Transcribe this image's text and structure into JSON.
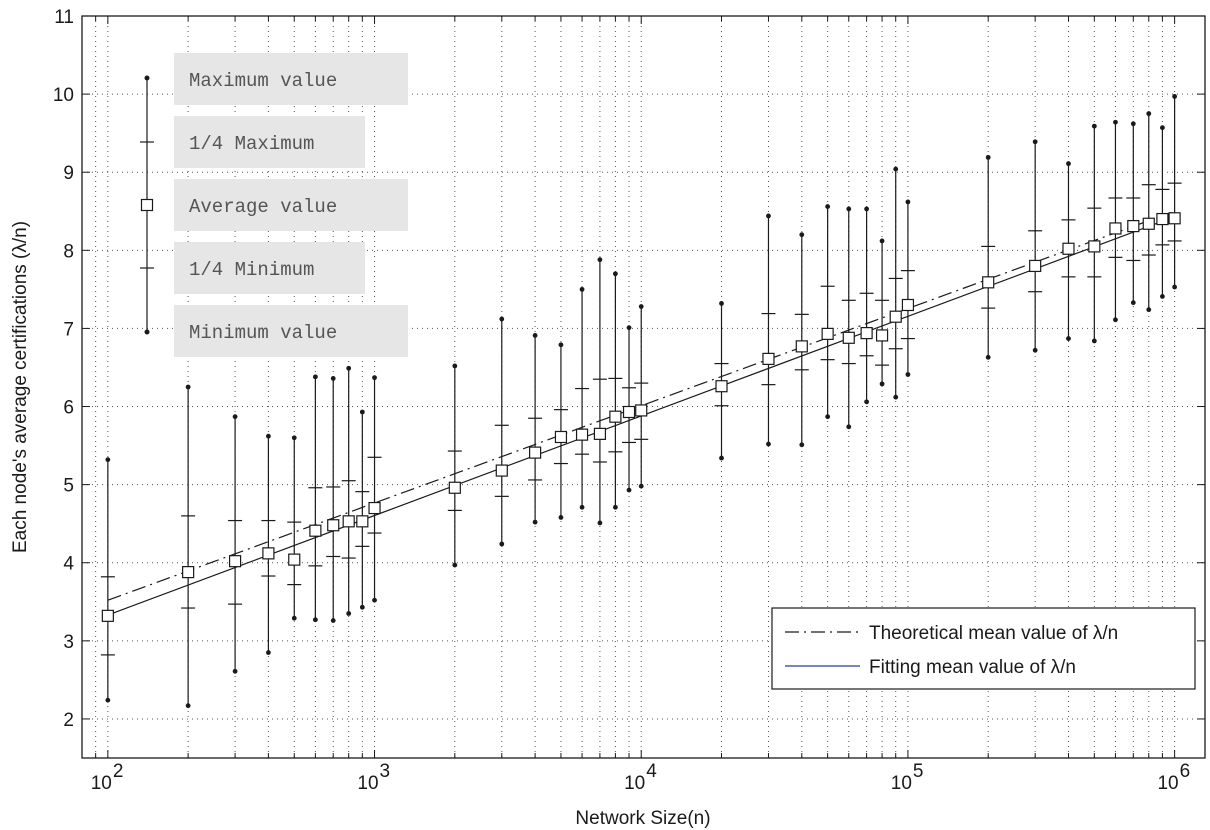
{
  "chart_data": {
    "type": "scatter",
    "title": "",
    "xlabel": "Network Size(n)",
    "ylabel": "Each node's average certifications (λ/n)",
    "x_scale": "log",
    "xlim": [
      80,
      1300000
    ],
    "ylim": [
      1.5,
      11
    ],
    "grid": true,
    "x_ticks": [
      {
        "value": 100,
        "base": "10",
        "exp": "2"
      },
      {
        "value": 1000,
        "base": "10",
        "exp": "3"
      },
      {
        "value": 10000,
        "base": "10",
        "exp": "4"
      },
      {
        "value": 100000,
        "base": "10",
        "exp": "5"
      },
      {
        "value": 1000000,
        "base": "10",
        "exp": "6"
      }
    ],
    "y_ticks": [
      "2",
      "3",
      "4",
      "5",
      "6",
      "7",
      "8",
      "9",
      "10",
      "11"
    ],
    "series": [
      {
        "name": "Average value",
        "points": [
          {
            "n": 100,
            "max": 5.32,
            "q3": 3.82,
            "avg": 3.32,
            "q1": 2.82,
            "min": 2.24
          },
          {
            "n": 200,
            "max": 6.25,
            "q3": 4.6,
            "avg": 3.88,
            "q1": 3.42,
            "min": 2.17
          },
          {
            "n": 300,
            "max": 5.87,
            "q3": 4.54,
            "avg": 4.02,
            "q1": 3.47,
            "min": 2.61
          },
          {
            "n": 400,
            "max": 5.62,
            "q3": 4.54,
            "avg": 4.12,
            "q1": 3.83,
            "min": 2.85
          },
          {
            "n": 500,
            "max": 5.6,
            "q3": 4.52,
            "avg": 4.04,
            "q1": 3.72,
            "min": 3.29
          },
          {
            "n": 600,
            "max": 6.38,
            "q3": 4.96,
            "avg": 4.41,
            "q1": 3.96,
            "min": 3.27
          },
          {
            "n": 700,
            "max": 6.36,
            "q3": 4.97,
            "avg": 4.48,
            "q1": 4.08,
            "min": 3.26
          },
          {
            "n": 800,
            "max": 6.49,
            "q3": 5.05,
            "avg": 4.53,
            "q1": 4.06,
            "min": 3.35
          },
          {
            "n": 900,
            "max": 5.93,
            "q3": 4.91,
            "avg": 4.53,
            "q1": 4.21,
            "min": 3.43
          },
          {
            "n": 1000,
            "max": 6.37,
            "q3": 5.35,
            "avg": 4.7,
            "q1": 4.38,
            "min": 3.52
          },
          {
            "n": 2000,
            "max": 6.52,
            "q3": 5.43,
            "avg": 4.96,
            "q1": 4.67,
            "min": 3.97
          },
          {
            "n": 3000,
            "max": 7.12,
            "q3": 5.76,
            "avg": 5.18,
            "q1": 4.85,
            "min": 4.24
          },
          {
            "n": 4000,
            "max": 6.91,
            "q3": 5.85,
            "avg": 5.41,
            "q1": 5.06,
            "min": 4.52
          },
          {
            "n": 5000,
            "max": 6.79,
            "q3": 5.96,
            "avg": 5.61,
            "q1": 5.27,
            "min": 4.58
          },
          {
            "n": 6000,
            "max": 7.5,
            "q3": 6.23,
            "avg": 5.64,
            "q1": 5.39,
            "min": 4.71
          },
          {
            "n": 7000,
            "max": 7.88,
            "q3": 6.35,
            "avg": 5.65,
            "q1": 5.29,
            "min": 4.51
          },
          {
            "n": 8000,
            "max": 7.7,
            "q3": 6.36,
            "avg": 5.87,
            "q1": 5.42,
            "min": 4.71
          },
          {
            "n": 9000,
            "max": 7.01,
            "q3": 6.24,
            "avg": 5.93,
            "q1": 5.54,
            "min": 4.93
          },
          {
            "n": 10000,
            "max": 7.28,
            "q3": 6.3,
            "avg": 5.95,
            "q1": 5.58,
            "min": 4.98
          },
          {
            "n": 20000,
            "max": 7.32,
            "q3": 6.55,
            "avg": 6.26,
            "q1": 6.01,
            "min": 5.34
          },
          {
            "n": 30000,
            "max": 8.44,
            "q3": 7.19,
            "avg": 6.61,
            "q1": 6.28,
            "min": 5.52
          },
          {
            "n": 40000,
            "max": 8.2,
            "q3": 7.18,
            "avg": 6.77,
            "q1": 6.47,
            "min": 5.51
          },
          {
            "n": 50000,
            "max": 8.56,
            "q3": 7.54,
            "avg": 6.93,
            "q1": 6.6,
            "min": 5.87
          },
          {
            "n": 60000,
            "max": 8.53,
            "q3": 7.36,
            "avg": 6.88,
            "q1": 6.55,
            "min": 5.74
          },
          {
            "n": 70000,
            "max": 8.53,
            "q3": 7.45,
            "avg": 6.94,
            "q1": 6.65,
            "min": 6.06
          },
          {
            "n": 80000,
            "max": 8.12,
            "q3": 7.36,
            "avg": 6.91,
            "q1": 6.53,
            "min": 6.29
          },
          {
            "n": 90000,
            "max": 9.04,
            "q3": 7.64,
            "avg": 7.15,
            "q1": 6.74,
            "min": 6.12
          },
          {
            "n": 100000,
            "max": 8.62,
            "q3": 7.74,
            "avg": 7.3,
            "q1": 6.87,
            "min": 6.41
          },
          {
            "n": 200000,
            "max": 9.19,
            "q3": 8.05,
            "avg": 7.59,
            "q1": 7.26,
            "min": 6.63
          },
          {
            "n": 300000,
            "max": 9.39,
            "q3": 8.25,
            "avg": 7.8,
            "q1": 7.47,
            "min": 6.72
          },
          {
            "n": 400000,
            "max": 9.11,
            "q3": 8.39,
            "avg": 8.02,
            "q1": 7.66,
            "min": 6.87
          },
          {
            "n": 500000,
            "max": 9.59,
            "q3": 8.54,
            "avg": 8.05,
            "q1": 7.66,
            "min": 6.84
          },
          {
            "n": 600000,
            "max": 9.64,
            "q3": 8.67,
            "avg": 8.28,
            "q1": 7.91,
            "min": 7.11
          },
          {
            "n": 700000,
            "max": 9.62,
            "q3": 8.67,
            "avg": 8.31,
            "q1": 7.87,
            "min": 7.33
          },
          {
            "n": 800000,
            "max": 9.75,
            "q3": 8.84,
            "avg": 8.34,
            "q1": 7.94,
            "min": 7.24
          },
          {
            "n": 900000,
            "max": 9.57,
            "q3": 8.78,
            "avg": 8.4,
            "q1": 8.07,
            "min": 7.41
          },
          {
            "n": 1000000,
            "max": 9.97,
            "q3": 8.86,
            "avg": 8.41,
            "q1": 8.12,
            "min": 7.53
          }
        ]
      },
      {
        "name": "Theoretical mean value of λ/n",
        "style": "dash-dot",
        "x": [
          100,
          1000000
        ],
        "y": [
          3.52,
          8.5
        ]
      },
      {
        "name": "Fitting mean value of λ/n",
        "style": "solid",
        "x": [
          100,
          1000000
        ],
        "y": [
          3.33,
          8.43
        ]
      }
    ],
    "key_labels": [
      "Maximum value",
      "1/4 Maximum",
      "Average value",
      "1/4 Minimum",
      "Minimum value"
    ],
    "legend": {
      "position": "bottom-right",
      "entries": [
        "Theoretical mean value of λ/n",
        "Fitting mean value of λ/n"
      ],
      "fit_line_color": "#2a3d8f"
    },
    "colors": {
      "marker": "#1a1a1a",
      "grid": "#555555",
      "key_box": "#e6e6e6",
      "key_text": "#555555"
    }
  }
}
